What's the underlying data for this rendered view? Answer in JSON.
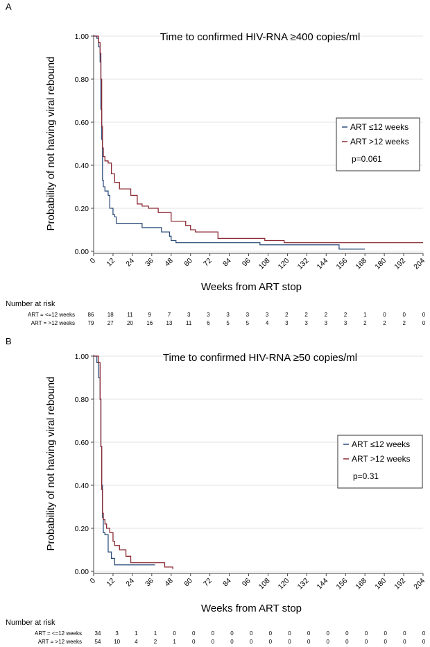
{
  "chart_data": [
    {
      "panel": "A",
      "type": "line",
      "title": "Time to confirmed HIV-RNA ≥400 copies/ml",
      "xlabel": "Weeks from ART stop",
      "ylabel": "Probability of not having viral rebound",
      "xlim": [
        0,
        204
      ],
      "ylim": [
        0,
        1
      ],
      "x_ticks": [
        "0",
        "12",
        "24",
        "36",
        "48",
        "60",
        "72",
        "84",
        "96",
        "108",
        "120",
        "132",
        "144",
        "156",
        "168",
        "180",
        "192",
        "204"
      ],
      "y_ticks": [
        "0.00",
        "0.20",
        "0.40",
        "0.60",
        "0.80",
        "1.00"
      ],
      "grid": "horizontal",
      "legend_position": "right",
      "annotation": "p=0.061",
      "series": [
        {
          "name": "ART ≤12 weeks",
          "color": "#2e4f7c",
          "x": [
            0,
            2,
            3,
            4,
            4.5,
            5,
            5.5,
            6,
            7,
            9,
            10,
            12,
            13,
            14,
            30,
            42,
            47,
            48,
            51,
            103,
            152,
            168
          ],
          "y": [
            1.0,
            0.99,
            0.95,
            0.88,
            0.66,
            0.52,
            0.33,
            0.3,
            0.28,
            0.26,
            0.2,
            0.17,
            0.16,
            0.13,
            0.11,
            0.09,
            0.07,
            0.05,
            0.04,
            0.03,
            0.01,
            0.01
          ]
        },
        {
          "name": "ART >12 weeks",
          "color": "#8b2a33",
          "x": [
            0,
            3,
            4,
            4.5,
            5,
            5.5,
            6,
            7,
            9,
            11,
            13,
            16,
            23,
            27,
            30,
            34,
            40,
            48,
            57,
            60,
            63,
            77,
            106,
            118,
            204
          ],
          "y": [
            1.0,
            0.97,
            0.92,
            0.8,
            0.58,
            0.48,
            0.44,
            0.42,
            0.41,
            0.36,
            0.32,
            0.29,
            0.26,
            0.22,
            0.21,
            0.2,
            0.18,
            0.14,
            0.12,
            0.1,
            0.09,
            0.06,
            0.05,
            0.04,
            0.04
          ]
        }
      ],
      "number_at_risk": {
        "heading": "Number at risk",
        "rows": [
          {
            "label": "ART = <=12 weeks",
            "values": [
              "86",
              "18",
              "11",
              "9",
              "7",
              "3",
              "3",
              "3",
              "3",
              "3",
              "2",
              "2",
              "2",
              "2",
              "1",
              "0",
              "0",
              "0"
            ]
          },
          {
            "label": "ART = >12 weeks",
            "values": [
              "79",
              "27",
              "20",
              "16",
              "13",
              "11",
              "6",
              "5",
              "5",
              "4",
              "3",
              "3",
              "3",
              "3",
              "2",
              "2",
              "2",
              "0"
            ]
          }
        ]
      }
    },
    {
      "panel": "B",
      "type": "line",
      "title": "Time to confirmed HIV-RNA ≥50 copies/ml",
      "xlabel": "Weeks from ART stop",
      "ylabel": "Probability of not having viral rebound",
      "xlim": [
        0,
        204
      ],
      "ylim": [
        0,
        1
      ],
      "x_ticks": [
        "0",
        "12",
        "24",
        "36",
        "48",
        "60",
        "72",
        "84",
        "96",
        "108",
        "120",
        "132",
        "144",
        "156",
        "168",
        "180",
        "192",
        "204"
      ],
      "y_ticks": [
        "0.00",
        "0.20",
        "0.40",
        "0.60",
        "0.80",
        "1.00"
      ],
      "grid": "horizontal",
      "legend_position": "right",
      "annotation": "p=0.31",
      "series": [
        {
          "name": "ART ≤12 weeks",
          "color": "#2e4f7c",
          "x": [
            0,
            2,
            3,
            4,
            4.5,
            5,
            5.5,
            6,
            7,
            9,
            11,
            13,
            38
          ],
          "y": [
            1.0,
            0.97,
            0.9,
            0.8,
            0.58,
            0.4,
            0.25,
            0.18,
            0.17,
            0.09,
            0.06,
            0.03,
            0.03
          ]
        },
        {
          "name": "ART >12 weeks",
          "color": "#8b2a33",
          "x": [
            0,
            3,
            4,
            4.5,
            5,
            5.5,
            6,
            7,
            8,
            10,
            12,
            13,
            16,
            20,
            23,
            44,
            49
          ],
          "y": [
            1.0,
            0.97,
            0.8,
            0.58,
            0.38,
            0.27,
            0.24,
            0.22,
            0.2,
            0.18,
            0.14,
            0.12,
            0.1,
            0.07,
            0.04,
            0.02,
            0.01
          ]
        }
      ],
      "number_at_risk": {
        "heading": "Number at risk",
        "rows": [
          {
            "label": "ART = <=12 weeks",
            "values": [
              "34",
              "3",
              "1",
              "1",
              "0",
              "0",
              "0",
              "0",
              "0",
              "0",
              "0",
              "0",
              "0",
              "0",
              "0",
              "0",
              "0",
              "0"
            ]
          },
          {
            "label": "ART = >12 weeks",
            "values": [
              "54",
              "10",
              "4",
              "2",
              "1",
              "0",
              "0",
              "0",
              "0",
              "0",
              "0",
              "0",
              "0",
              "0",
              "0",
              "0",
              "0",
              "0"
            ]
          }
        ]
      }
    }
  ]
}
